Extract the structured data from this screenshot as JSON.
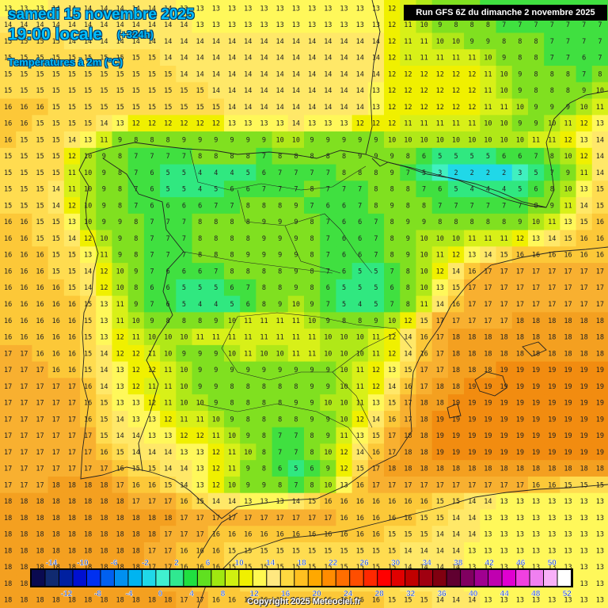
{
  "header": {
    "date": "samedi 15 novembre 2025",
    "local_time": "19:00 locale",
    "forecast_step": "(+324h)",
    "parameter": "Températures à 2m (°C)"
  },
  "run_info": "Run GFS 6Z du dimanche 2 novembre 2025",
  "copyright": "Copyright 2025 Meteociel.fr",
  "legend": {
    "top_labels": [
      "-14",
      "-10",
      "-6",
      "-2",
      "2",
      "6",
      "10",
      "14",
      "18",
      "22",
      "26",
      "30",
      "34",
      "38",
      "42",
      "46",
      "50"
    ],
    "bottom_labels": [
      "-12",
      "-8",
      "-4",
      "0",
      "4",
      "8",
      "12",
      "16",
      "20",
      "24",
      "28",
      "32",
      "36",
      "40",
      "44",
      "48",
      "52"
    ],
    "colors": [
      "#0a0a50",
      "#102a70",
      "#0020a0",
      "#0010d0",
      "#0030f0",
      "#0060f0",
      "#0090f0",
      "#00b4f0",
      "#20d8e8",
      "#40f0d0",
      "#30e890",
      "#20e040",
      "#60e020",
      "#a0e810",
      "#d0f010",
      "#f0f000",
      "#fff850",
      "#ffe880",
      "#ffd840",
      "#ffc020",
      "#ffa800",
      "#ff8c00",
      "#ff6e00",
      "#ff4e00",
      "#ff2800",
      "#ff0000",
      "#e00000",
      "#c00000",
      "#a00010",
      "#800010",
      "#600030",
      "#800060",
      "#a00090",
      "#c000b0",
      "#e000d0",
      "#f040e0",
      "#f080f0",
      "#f8b0f8",
      "#ffffff"
    ]
  },
  "temperature_grid": [
    [
      13,
      13,
      13,
      14,
      14,
      14,
      14,
      14,
      14,
      14,
      14,
      13,
      13,
      13,
      13,
      13,
      13,
      13,
      13,
      13,
      13,
      13,
      13,
      13,
      12,
      11,
      10,
      9,
      8,
      8,
      7,
      7,
      7,
      7,
      7,
      7,
      7,
      7
    ],
    [
      14,
      14,
      14,
      14,
      14,
      14,
      14,
      14,
      14,
      14,
      14,
      14,
      13,
      13,
      13,
      13,
      13,
      13,
      13,
      13,
      13,
      13,
      13,
      13,
      12,
      11,
      10,
      9,
      8,
      8,
      8,
      7,
      7,
      7,
      7,
      7,
      7,
      7
    ],
    [
      15,
      15,
      15,
      15,
      14,
      14,
      14,
      14,
      14,
      14,
      14,
      14,
      14,
      14,
      14,
      14,
      14,
      14,
      14,
      14,
      14,
      14,
      14,
      14,
      12,
      11,
      11,
      10,
      10,
      9,
      9,
      8,
      8,
      8,
      7,
      7,
      7,
      7
    ],
    [
      15,
      15,
      15,
      15,
      15,
      15,
      15,
      15,
      15,
      15,
      14,
      14,
      14,
      14,
      14,
      14,
      14,
      14,
      14,
      14,
      14,
      14,
      14,
      14,
      12,
      11,
      11,
      11,
      11,
      11,
      10,
      9,
      8,
      8,
      7,
      7,
      6,
      7
    ],
    [
      15,
      15,
      15,
      15,
      15,
      15,
      15,
      15,
      15,
      15,
      15,
      14,
      14,
      14,
      14,
      14,
      14,
      14,
      14,
      14,
      14,
      14,
      14,
      14,
      12,
      12,
      12,
      12,
      12,
      12,
      11,
      10,
      9,
      8,
      8,
      8,
      7,
      8
    ],
    [
      15,
      15,
      15,
      15,
      15,
      15,
      15,
      15,
      15,
      15,
      15,
      15,
      15,
      14,
      14,
      14,
      14,
      14,
      14,
      14,
      14,
      14,
      14,
      13,
      12,
      12,
      12,
      12,
      12,
      12,
      11,
      10,
      9,
      8,
      8,
      8,
      9,
      10
    ],
    [
      16,
      16,
      16,
      15,
      15,
      15,
      15,
      15,
      15,
      15,
      15,
      15,
      15,
      15,
      14,
      14,
      14,
      14,
      14,
      14,
      14,
      14,
      14,
      13,
      12,
      12,
      12,
      12,
      12,
      12,
      11,
      11,
      10,
      9,
      9,
      9,
      10,
      11
    ],
    [
      16,
      16,
      15,
      15,
      15,
      15,
      14,
      13,
      12,
      12,
      12,
      12,
      12,
      12,
      13,
      13,
      13,
      13,
      14,
      13,
      13,
      13,
      12,
      12,
      12,
      11,
      11,
      11,
      11,
      11,
      10,
      10,
      9,
      9,
      10,
      11,
      12,
      13
    ],
    [
      16,
      15,
      15,
      15,
      14,
      13,
      11,
      9,
      8,
      8,
      8,
      9,
      9,
      9,
      9,
      9,
      9,
      10,
      10,
      9,
      9,
      9,
      9,
      9,
      10,
      10,
      10,
      10,
      10,
      10,
      10,
      10,
      10,
      11,
      11,
      12,
      13,
      14
    ],
    [
      15,
      15,
      15,
      15,
      12,
      10,
      9,
      8,
      7,
      7,
      7,
      7,
      8,
      8,
      8,
      8,
      7,
      8,
      8,
      8,
      8,
      8,
      9,
      9,
      9,
      8,
      6,
      5,
      5,
      5,
      5,
      6,
      6,
      7,
      8,
      10,
      12,
      14
    ],
    [
      15,
      15,
      15,
      15,
      11,
      10,
      9,
      8,
      7,
      6,
      5,
      5,
      4,
      4,
      4,
      5,
      6,
      7,
      7,
      7,
      7,
      8,
      8,
      8,
      9,
      7,
      5,
      3,
      2,
      2,
      2,
      2,
      3,
      5,
      7,
      9,
      11,
      14
    ],
    [
      15,
      15,
      15,
      14,
      11,
      10,
      9,
      8,
      7,
      6,
      5,
      5,
      4,
      5,
      6,
      6,
      7,
      7,
      7,
      8,
      7,
      7,
      7,
      8,
      8,
      8,
      7,
      6,
      5,
      4,
      4,
      4,
      5,
      6,
      8,
      10,
      13,
      15
    ],
    [
      15,
      15,
      15,
      14,
      12,
      10,
      9,
      8,
      7,
      6,
      6,
      6,
      6,
      7,
      7,
      8,
      8,
      8,
      9,
      7,
      6,
      6,
      7,
      8,
      9,
      8,
      8,
      7,
      7,
      7,
      7,
      7,
      7,
      8,
      9,
      11,
      14,
      15
    ],
    [
      16,
      16,
      15,
      15,
      13,
      10,
      9,
      9,
      8,
      7,
      7,
      7,
      8,
      8,
      8,
      8,
      9,
      9,
      9,
      8,
      7,
      6,
      6,
      7,
      8,
      9,
      9,
      8,
      8,
      8,
      8,
      8,
      9,
      10,
      11,
      13,
      15,
      16
    ],
    [
      16,
      16,
      15,
      15,
      14,
      12,
      10,
      9,
      8,
      7,
      7,
      7,
      8,
      8,
      8,
      8,
      9,
      9,
      9,
      8,
      7,
      6,
      6,
      7,
      8,
      9,
      10,
      10,
      10,
      11,
      11,
      11,
      12,
      13,
      14,
      15,
      16,
      16
    ],
    [
      16,
      16,
      16,
      15,
      15,
      13,
      11,
      9,
      8,
      7,
      7,
      7,
      8,
      8,
      8,
      9,
      9,
      9,
      9,
      8,
      7,
      6,
      6,
      7,
      8,
      9,
      10,
      11,
      12,
      13,
      14,
      15,
      16,
      16,
      16,
      16,
      16,
      16
    ],
    [
      16,
      16,
      16,
      15,
      15,
      14,
      12,
      10,
      9,
      7,
      6,
      6,
      6,
      7,
      8,
      8,
      8,
      8,
      9,
      8,
      7,
      6,
      5,
      5,
      7,
      8,
      10,
      12,
      14,
      16,
      17,
      17,
      17,
      17,
      17,
      17,
      17,
      17
    ],
    [
      16,
      16,
      16,
      16,
      15,
      14,
      12,
      10,
      8,
      6,
      6,
      5,
      5,
      5,
      6,
      7,
      8,
      8,
      9,
      8,
      6,
      5,
      5,
      5,
      6,
      8,
      10,
      13,
      15,
      17,
      17,
      17,
      17,
      17,
      17,
      17,
      17,
      17
    ],
    [
      16,
      16,
      16,
      16,
      16,
      15,
      13,
      11,
      9,
      7,
      6,
      5,
      4,
      4,
      5,
      6,
      8,
      9,
      10,
      9,
      7,
      5,
      4,
      5,
      7,
      8,
      11,
      14,
      16,
      17,
      17,
      17,
      17,
      17,
      17,
      17,
      17,
      17
    ],
    [
      16,
      16,
      16,
      16,
      16,
      15,
      13,
      11,
      10,
      9,
      8,
      8,
      8,
      9,
      10,
      11,
      11,
      11,
      11,
      10,
      9,
      8,
      8,
      9,
      10,
      12,
      15,
      17,
      17,
      17,
      17,
      17,
      18,
      18,
      18,
      18,
      18,
      18
    ],
    [
      16,
      16,
      16,
      16,
      16,
      15,
      13,
      12,
      11,
      10,
      10,
      10,
      11,
      11,
      11,
      11,
      11,
      11,
      11,
      11,
      10,
      10,
      10,
      11,
      12,
      14,
      16,
      17,
      18,
      18,
      18,
      18,
      18,
      18,
      18,
      18,
      18,
      18
    ],
    [
      17,
      17,
      16,
      16,
      16,
      15,
      14,
      12,
      12,
      11,
      10,
      9,
      9,
      9,
      10,
      11,
      10,
      10,
      11,
      11,
      10,
      10,
      10,
      11,
      12,
      14,
      16,
      17,
      18,
      18,
      18,
      18,
      18,
      18,
      18,
      18,
      18,
      18
    ],
    [
      17,
      17,
      17,
      16,
      16,
      15,
      14,
      13,
      12,
      12,
      11,
      10,
      9,
      9,
      9,
      9,
      9,
      9,
      9,
      9,
      9,
      10,
      11,
      12,
      13,
      15,
      17,
      17,
      18,
      18,
      18,
      19,
      19,
      19,
      19,
      19,
      19,
      19
    ],
    [
      17,
      17,
      17,
      17,
      17,
      16,
      14,
      13,
      12,
      11,
      11,
      10,
      9,
      9,
      8,
      8,
      8,
      8,
      8,
      9,
      9,
      10,
      11,
      12,
      14,
      16,
      17,
      18,
      18,
      19,
      19,
      19,
      19,
      19,
      19,
      19,
      19,
      19
    ],
    [
      17,
      17,
      17,
      17,
      17,
      16,
      15,
      13,
      13,
      12,
      11,
      10,
      10,
      9,
      8,
      8,
      8,
      8,
      9,
      9,
      10,
      10,
      11,
      13,
      15,
      17,
      18,
      18,
      19,
      19,
      19,
      19,
      19,
      19,
      19,
      19,
      19,
      19
    ],
    [
      17,
      17,
      17,
      17,
      17,
      16,
      15,
      14,
      13,
      13,
      12,
      11,
      11,
      10,
      9,
      8,
      8,
      8,
      8,
      9,
      9,
      10,
      12,
      14,
      16,
      17,
      18,
      19,
      19,
      19,
      19,
      19,
      19,
      19,
      19,
      19,
      19,
      19
    ],
    [
      17,
      17,
      17,
      17,
      17,
      17,
      15,
      14,
      14,
      13,
      13,
      12,
      12,
      11,
      10,
      9,
      8,
      7,
      7,
      8,
      9,
      11,
      13,
      15,
      17,
      18,
      18,
      19,
      19,
      19,
      19,
      19,
      19,
      19,
      19,
      19,
      19,
      19
    ],
    [
      17,
      17,
      17,
      17,
      17,
      17,
      16,
      15,
      14,
      14,
      14,
      13,
      13,
      12,
      11,
      10,
      8,
      7,
      7,
      8,
      10,
      12,
      14,
      16,
      17,
      18,
      18,
      19,
      19,
      19,
      19,
      19,
      19,
      19,
      19,
      19,
      19,
      19
    ],
    [
      17,
      17,
      17,
      17,
      17,
      17,
      17,
      16,
      15,
      15,
      14,
      14,
      13,
      12,
      11,
      9,
      8,
      6,
      5,
      6,
      9,
      12,
      15,
      17,
      18,
      18,
      18,
      18,
      18,
      18,
      18,
      18,
      18,
      18,
      18,
      18,
      18,
      18
    ],
    [
      17,
      17,
      17,
      18,
      18,
      18,
      18,
      17,
      16,
      16,
      15,
      14,
      13,
      12,
      10,
      9,
      9,
      8,
      7,
      8,
      10,
      13,
      16,
      17,
      17,
      17,
      17,
      17,
      17,
      17,
      17,
      17,
      17,
      16,
      16,
      15,
      15,
      15
    ],
    [
      18,
      18,
      18,
      18,
      18,
      18,
      18,
      18,
      17,
      17,
      17,
      16,
      15,
      14,
      14,
      13,
      13,
      13,
      14,
      15,
      16,
      16,
      16,
      16,
      16,
      16,
      16,
      15,
      15,
      14,
      14,
      13,
      13,
      13,
      13,
      13,
      13,
      13
    ],
    [
      18,
      18,
      18,
      18,
      18,
      18,
      18,
      18,
      18,
      18,
      18,
      17,
      17,
      17,
      17,
      17,
      17,
      17,
      17,
      17,
      17,
      16,
      16,
      16,
      16,
      16,
      15,
      15,
      14,
      14,
      13,
      13,
      13,
      13,
      13,
      13,
      13,
      13
    ],
    [
      18,
      18,
      18,
      18,
      18,
      18,
      18,
      18,
      18,
      18,
      17,
      17,
      17,
      16,
      16,
      16,
      16,
      16,
      16,
      16,
      16,
      16,
      16,
      16,
      15,
      15,
      15,
      14,
      14,
      14,
      13,
      13,
      13,
      13,
      13,
      13,
      13,
      13
    ],
    [
      18,
      18,
      18,
      18,
      18,
      18,
      18,
      18,
      18,
      17,
      17,
      16,
      16,
      16,
      15,
      15,
      15,
      15,
      15,
      15,
      15,
      15,
      15,
      15,
      15,
      14,
      14,
      14,
      14,
      13,
      13,
      13,
      13,
      13,
      13,
      13,
      13,
      13
    ],
    [
      18,
      18,
      18,
      18,
      18,
      18,
      18,
      18,
      18,
      17,
      17,
      16,
      16,
      16,
      15,
      15,
      15,
      15,
      15,
      15,
      15,
      15,
      15,
      15,
      15,
      14,
      14,
      14,
      14,
      13,
      13,
      13,
      13,
      13,
      13,
      13,
      13,
      13
    ],
    [
      18,
      18,
      18,
      18,
      18,
      18,
      18,
      18,
      18,
      18,
      17,
      17,
      16,
      16,
      16,
      15,
      15,
      15,
      15,
      15,
      15,
      15,
      15,
      15,
      15,
      14,
      14,
      14,
      14,
      13,
      13,
      13,
      13,
      13,
      13,
      13,
      13,
      13
    ],
    [
      18,
      18,
      18,
      18,
      18,
      18,
      18,
      18,
      18,
      18,
      18,
      17,
      17,
      16,
      16,
      16,
      16,
      16,
      16,
      16,
      16,
      16,
      16,
      16,
      15,
      15,
      15,
      14,
      14,
      14,
      13,
      13,
      13,
      13,
      13,
      13,
      13,
      13
    ]
  ]
}
